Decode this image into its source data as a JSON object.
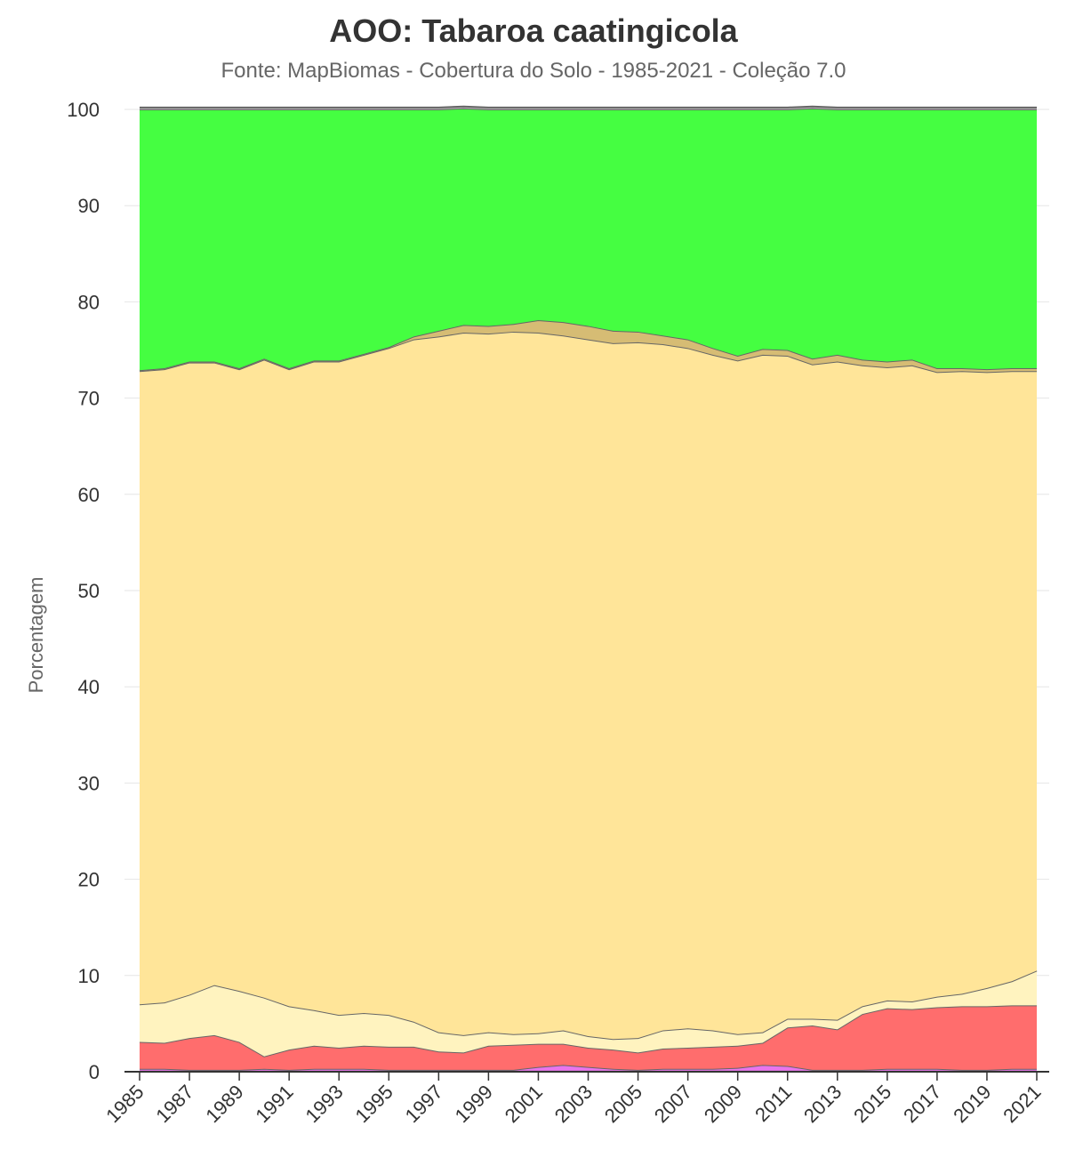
{
  "header": {
    "title": "AOO: Tabaroa caatingicola",
    "subtitle": "Fonte: MapBiomas - Cobertura do Solo - 1985-2021 - Coleção 7.0"
  },
  "chart_data": {
    "type": "area",
    "stacked": true,
    "title": "AOO: Tabaroa caatingicola",
    "subtitle": "Fonte: MapBiomas - Cobertura do Solo - 1985-2021 - Coleção 7.0",
    "xlabel": "",
    "ylabel": "Porcentagem",
    "ylim": [
      0,
      100
    ],
    "yticks": [
      0,
      10,
      20,
      30,
      40,
      50,
      60,
      70,
      80,
      90,
      100
    ],
    "grid": true,
    "legend": "none",
    "x": [
      1985,
      1986,
      1987,
      1988,
      1989,
      1990,
      1991,
      1992,
      1993,
      1994,
      1995,
      1996,
      1997,
      1998,
      1999,
      2000,
      2001,
      2002,
      2003,
      2004,
      2005,
      2006,
      2007,
      2008,
      2009,
      2010,
      2011,
      2012,
      2013,
      2014,
      2015,
      2016,
      2017,
      2018,
      2019,
      2020,
      2021
    ],
    "xticks": [
      1985,
      1987,
      1989,
      1991,
      1993,
      1995,
      1997,
      1999,
      2001,
      2003,
      2005,
      2007,
      2009,
      2011,
      2013,
      2015,
      2017,
      2019,
      2021
    ],
    "series": [
      {
        "color": "#ea9999",
        "values": [
          0.1,
          0.1,
          0.1,
          0.1,
          0.1,
          0.1,
          0.1,
          0.1,
          0.1,
          0.1,
          0.1,
          0.1,
          0.1,
          0.1,
          0.1,
          0.1,
          0.1,
          0.1,
          0.1,
          0.1,
          0.1,
          0.1,
          0.1,
          0.1,
          0.1,
          0.1,
          0.1,
          0.1,
          0.1,
          0.1,
          0.1,
          0.1,
          0.1,
          0.1,
          0.1,
          0.1,
          0.1
        ]
      },
      {
        "color": "#e974ed",
        "values": [
          0.2,
          0.2,
          0.1,
          0.1,
          0.1,
          0.2,
          0.1,
          0.2,
          0.2,
          0.2,
          0.1,
          0.1,
          0.1,
          0.1,
          0.1,
          0.1,
          0.4,
          0.6,
          0.4,
          0.2,
          0.1,
          0.2,
          0.2,
          0.2,
          0.3,
          0.6,
          0.5,
          0.1,
          0.1,
          0.1,
          0.2,
          0.2,
          0.2,
          0.1,
          0.1,
          0.2,
          0.2
        ]
      },
      {
        "color": "#ff6d6d",
        "values": [
          2.8,
          2.7,
          3.3,
          3.6,
          2.9,
          1.3,
          2.1,
          2.4,
          2.2,
          2.4,
          2.4,
          2.4,
          1.9,
          1.8,
          2.5,
          2.6,
          2.4,
          2.2,
          2.0,
          2.0,
          1.8,
          2.1,
          2.2,
          2.3,
          2.3,
          2.3,
          4.0,
          4.6,
          4.2,
          5.8,
          6.3,
          6.2,
          6.4,
          6.6,
          6.6,
          6.6,
          6.6
        ]
      },
      {
        "color": "#fff3bf",
        "values": [
          3.9,
          4.2,
          4.5,
          5.2,
          5.3,
          6.1,
          4.5,
          3.7,
          3.4,
          3.4,
          3.3,
          2.6,
          2.0,
          1.8,
          1.4,
          1.1,
          1.1,
          1.4,
          1.2,
          1.1,
          1.5,
          1.9,
          2.0,
          1.7,
          1.2,
          1.1,
          0.9,
          0.7,
          1.0,
          0.8,
          0.8,
          0.8,
          1.1,
          1.3,
          1.9,
          2.5,
          3.6
        ]
      },
      {
        "color": "#ffe599",
        "values": [
          65.8,
          65.8,
          65.7,
          64.7,
          64.6,
          66.3,
          66.2,
          67.4,
          67.9,
          68.4,
          69.3,
          70.9,
          72.3,
          73.0,
          72.6,
          73.0,
          72.8,
          72.2,
          72.4,
          72.3,
          72.3,
          71.3,
          70.7,
          70.2,
          70.0,
          70.4,
          68.9,
          68.0,
          68.4,
          66.6,
          65.8,
          66.1,
          64.9,
          64.7,
          64.0,
          63.4,
          62.3
        ]
      },
      {
        "color": "#d6bc74",
        "values": [
          0.1,
          0.1,
          0.1,
          0.1,
          0.1,
          0.1,
          0.1,
          0.1,
          0.1,
          0.1,
          0.1,
          0.3,
          0.6,
          0.8,
          0.8,
          0.8,
          1.3,
          1.4,
          1.4,
          1.3,
          1.1,
          0.9,
          0.9,
          0.7,
          0.5,
          0.6,
          0.6,
          0.6,
          0.7,
          0.6,
          0.6,
          0.6,
          0.4,
          0.3,
          0.3,
          0.3,
          0.3
        ]
      },
      {
        "color": "#45fe41",
        "values": [
          27.1,
          26.9,
          26.2,
          26.2,
          26.9,
          25.9,
          26.9,
          26.1,
          26.1,
          25.4,
          24.7,
          23.6,
          23.0,
          22.5,
          22.5,
          22.3,
          21.9,
          22.1,
          22.5,
          23.0,
          23.1,
          23.5,
          23.9,
          24.8,
          25.6,
          24.9,
          25.0,
          26.0,
          25.5,
          26.0,
          26.2,
          26.0,
          26.9,
          26.9,
          27.0,
          26.9,
          26.9
        ]
      },
      {
        "color": "#b4b4b4",
        "values": [
          0.2,
          0.2,
          0.2,
          0.2,
          0.2,
          0.2,
          0.2,
          0.2,
          0.2,
          0.2,
          0.2,
          0.2,
          0.2,
          0.2,
          0.2,
          0.2,
          0.2,
          0.2,
          0.2,
          0.2,
          0.2,
          0.2,
          0.2,
          0.2,
          0.2,
          0.2,
          0.2,
          0.2,
          0.2,
          0.2,
          0.2,
          0.2,
          0.2,
          0.2,
          0.2,
          0.2,
          0.2
        ]
      }
    ]
  }
}
